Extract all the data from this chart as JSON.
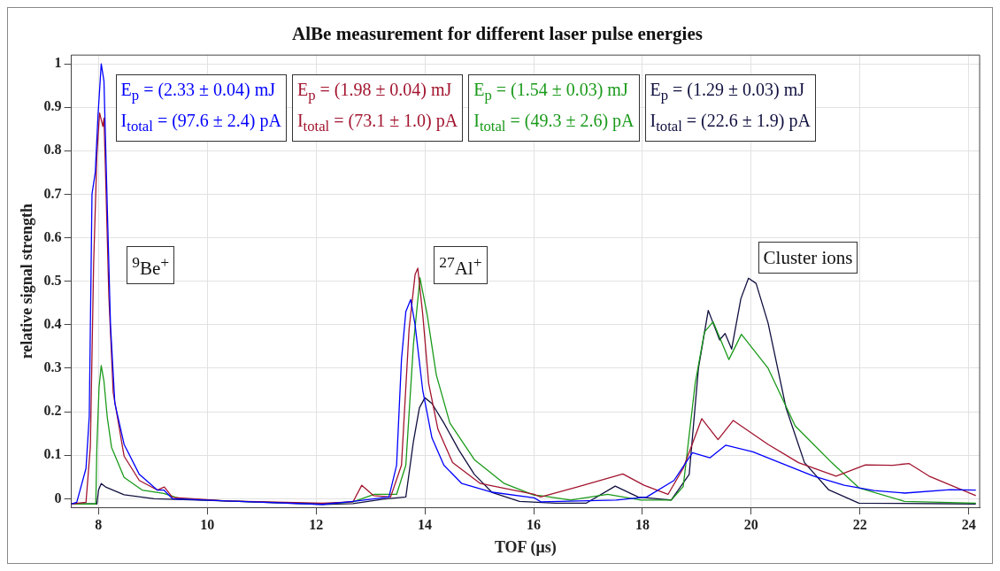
{
  "chart_data": {
    "type": "line",
    "title": "AlBe measurement for different laser pulse energies",
    "xlabel": "TOF (μs)",
    "ylabel": "relative signal strength",
    "xlim": [
      7.5,
      24.2
    ],
    "xticks": [
      8,
      10,
      12,
      14,
      16,
      18,
      20,
      22,
      24
    ],
    "ylim": [
      -0.02,
      1.02
    ],
    "yticks": [
      0,
      0.1,
      0.2,
      0.3,
      0.4,
      0.5,
      0.6,
      0.7,
      0.8,
      0.9,
      1
    ],
    "grid": true,
    "marker": "none",
    "line_style": "solid",
    "annotations": [
      "$^{9}$Be$^{+}$",
      "$^{27}$Al$^{+}$",
      "Cluster ions"
    ],
    "series": [
      {
        "name": "E$_{p}$ = (2.33 ± 0.04) mJ\nI$_{total}$ = (97.6 ± 2.4) pA",
        "color": "#0000ff",
        "x": [
          7.5,
          7.6,
          7.77,
          7.83,
          7.88,
          7.94,
          7.99,
          8.05,
          8.1,
          8.16,
          8.22,
          8.3,
          8.47,
          8.75,
          9.08,
          9.2,
          9.36,
          10.36,
          12.12,
          12.68,
          13.34,
          13.48,
          13.57,
          13.65,
          13.74,
          13.82,
          13.96,
          14.13,
          14.35,
          14.68,
          15.24,
          16.01,
          16.13,
          17.52,
          18.08,
          18.58,
          18.92,
          19.24,
          19.53,
          20.03,
          20.59,
          21.15,
          21.71,
          22.26,
          22.82,
          23.66,
          24.13
        ],
        "values": [
          -0.012,
          -0.008,
          0.07,
          0.19,
          0.7,
          0.75,
          0.88,
          1.0,
          0.96,
          0.675,
          0.4,
          0.22,
          0.125,
          0.056,
          0.02,
          0.02,
          0.0,
          -0.005,
          -0.013,
          -0.006,
          0.004,
          0.077,
          0.32,
          0.43,
          0.458,
          0.4,
          0.25,
          0.14,
          0.077,
          0.035,
          0.015,
          0.002,
          -0.007,
          -0.003,
          0.004,
          0.042,
          0.106,
          0.094,
          0.123,
          0.108,
          0.08,
          0.052,
          0.031,
          0.019,
          0.013,
          0.021,
          0.02
        ]
      },
      {
        "name": "E$_{p}$ = (1.98 ± 0.04) mJ\nI$_{total}$ = (73.1 ± 1.0) pA",
        "color": "#a2142f",
        "x": [
          7.5,
          7.77,
          7.85,
          7.91,
          7.97,
          8.02,
          8.08,
          8.1,
          8.13,
          8.19,
          8.27,
          8.47,
          8.75,
          9.08,
          9.21,
          9.36,
          10.36,
          12.12,
          12.68,
          12.84,
          13.06,
          13.37,
          13.57,
          13.71,
          13.82,
          13.87,
          13.96,
          14.07,
          14.24,
          14.51,
          15.02,
          16.01,
          16.13,
          16.8,
          17.64,
          18.03,
          18.47,
          18.75,
          19.09,
          19.39,
          19.67,
          20.31,
          20.87,
          21.56,
          22.1,
          22.6,
          22.9,
          23.27,
          24.13
        ],
        "values": [
          -0.012,
          -0.008,
          0.12,
          0.54,
          0.79,
          0.887,
          0.856,
          0.875,
          0.745,
          0.466,
          0.244,
          0.098,
          0.042,
          0.02,
          0.027,
          0.003,
          -0.005,
          -0.01,
          -0.007,
          0.031,
          0.007,
          0.004,
          0.077,
          0.39,
          0.515,
          0.53,
          0.425,
          0.265,
          0.16,
          0.083,
          0.035,
          0.01,
          0.004,
          0.027,
          0.057,
          0.031,
          0.01,
          0.07,
          0.184,
          0.136,
          0.18,
          0.125,
          0.083,
          0.052,
          0.078,
          0.077,
          0.081,
          0.052,
          0.007
        ]
      },
      {
        "name": "E$_{p}$ = (1.54 ± 0.03) mJ\nI$_{total}$ = (49.3 ± 2.6) pA",
        "color": "#1a9a1a",
        "x": [
          7.5,
          7.95,
          7.97,
          8.01,
          8.05,
          8.1,
          8.16,
          8.24,
          8.47,
          8.8,
          9.2,
          9.5,
          10.36,
          12.12,
          12.68,
          13.07,
          13.48,
          13.65,
          13.79,
          13.91,
          14.04,
          14.21,
          14.46,
          14.91,
          15.46,
          16.01,
          16.13,
          16.68,
          17.36,
          17.97,
          18.53,
          18.75,
          18.97,
          19.14,
          19.3,
          19.59,
          19.82,
          20.31,
          20.81,
          21.48,
          21.98,
          22.82,
          24.13
        ],
        "values": [
          -0.012,
          -0.012,
          0.12,
          0.257,
          0.306,
          0.27,
          0.188,
          0.118,
          0.049,
          0.02,
          0.012,
          0.0,
          -0.005,
          -0.012,
          -0.007,
          0.01,
          0.01,
          0.077,
          0.355,
          0.508,
          0.425,
          0.285,
          0.174,
          0.09,
          0.035,
          0.008,
          0.007,
          -0.003,
          0.01,
          -0.003,
          -0.003,
          0.028,
          0.265,
          0.383,
          0.407,
          0.32,
          0.378,
          0.3,
          0.167,
          0.083,
          0.025,
          -0.006,
          -0.01
        ]
      },
      {
        "name": "E$_{p}$ = (1.29 ± 0.03) mJ\nI$_{total}$ = (22.6 ± 1.9) pA",
        "color": "#101040",
        "x": [
          7.5,
          7.97,
          8.0,
          8.05,
          8.13,
          8.47,
          9.02,
          10.36,
          12.12,
          12.68,
          13.23,
          13.65,
          13.79,
          13.9,
          14.0,
          14.13,
          14.35,
          14.63,
          14.91,
          15.24,
          15.74,
          16.4,
          16.97,
          17.5,
          17.92,
          18.53,
          18.86,
          19.03,
          19.21,
          19.42,
          19.52,
          19.64,
          19.81,
          19.95,
          20.09,
          20.31,
          20.64,
          20.98,
          21.42,
          21.98,
          24.13
        ],
        "values": [
          -0.012,
          -0.012,
          0.02,
          0.035,
          0.027,
          0.009,
          0.0,
          -0.005,
          -0.013,
          -0.011,
          -0.001,
          0.004,
          0.132,
          0.209,
          0.232,
          0.219,
          0.174,
          0.111,
          0.056,
          0.014,
          -0.006,
          -0.01,
          -0.01,
          0.029,
          0.004,
          -0.003,
          0.056,
          0.3,
          0.433,
          0.365,
          0.38,
          0.344,
          0.46,
          0.507,
          0.495,
          0.404,
          0.209,
          0.083,
          0.021,
          -0.01,
          -0.012
        ]
      }
    ]
  }
}
